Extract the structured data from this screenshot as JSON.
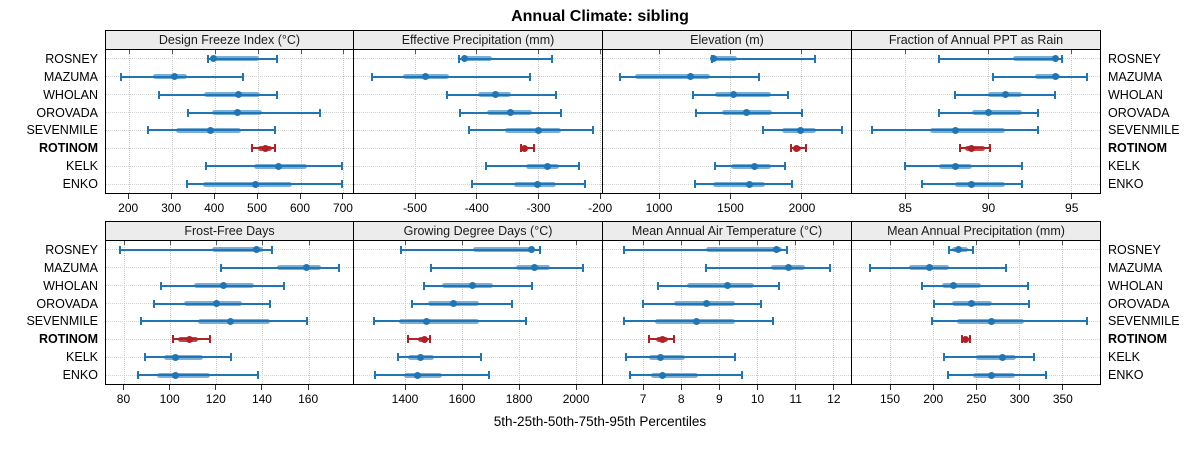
{
  "title": "Annual Climate: sibling",
  "caption": "5th-25th-50th-75th-95th Percentiles",
  "sites": [
    "ROSNEY",
    "MAZUMA",
    "WHOLAN",
    "OROVADA",
    "SEVENMILE",
    "ROTINOM",
    "KELK",
    "ENKO"
  ],
  "highlight_site": "ROTINOM",
  "colors": {
    "series": "#2076B4",
    "series_band": "#79AFD7",
    "highlight": "#B02126",
    "highlight_band": "#C0474E",
    "header_bg": "#ECECEC",
    "panel_border": "#000000",
    "grid": "#C9C9C9"
  },
  "chart_data": [
    {
      "type": "dotplot-percentiles",
      "title": "Design Freeze Index (°C)",
      "xlim": [
        146,
        721
      ],
      "ticks": [
        200,
        300,
        400,
        500,
        600,
        700
      ],
      "percentiles": [
        "5th",
        "25th",
        "50th",
        "75th",
        "95th"
      ],
      "series": [
        {
          "site": "ROSNEY",
          "values": [
            383,
            389,
            397,
            503,
            545
          ]
        },
        {
          "site": "MAZUMA",
          "values": [
            180,
            255,
            305,
            335,
            465
          ]
        },
        {
          "site": "WHOLAN",
          "values": [
            270,
            375,
            455,
            505,
            543
          ]
        },
        {
          "site": "OROVADA",
          "values": [
            337,
            392,
            453,
            510,
            645
          ]
        },
        {
          "site": "SEVENMILE",
          "values": [
            243,
            310,
            390,
            460,
            540
          ]
        },
        {
          "site": "ROTINOM",
          "values": [
            487,
            500,
            518,
            532,
            540
          ]
        },
        {
          "site": "KELK",
          "values": [
            378,
            490,
            548,
            615,
            695
          ]
        },
        {
          "site": "ENKO",
          "values": [
            335,
            372,
            495,
            578,
            695
          ]
        }
      ]
    },
    {
      "type": "dotplot-percentiles",
      "title": "Effective Precipitation (mm)",
      "xlim": [
        -599,
        -197
      ],
      "ticks": [
        -500,
        -400,
        -300,
        -200
      ],
      "percentiles": [
        "5th",
        "25th",
        "50th",
        "75th",
        "95th"
      ],
      "series": [
        {
          "site": "ROSNEY",
          "values": [
            -428,
            -424,
            -420,
            -375,
            -278
          ]
        },
        {
          "site": "MAZUMA",
          "values": [
            -570,
            -520,
            -483,
            -445,
            -313
          ]
        },
        {
          "site": "WHOLAN",
          "values": [
            -448,
            -398,
            -370,
            -345,
            -272
          ]
        },
        {
          "site": "OROVADA",
          "values": [
            -427,
            -383,
            -346,
            -310,
            -264
          ]
        },
        {
          "site": "SEVENMILE",
          "values": [
            -412,
            -355,
            -300,
            -263,
            -212
          ]
        },
        {
          "site": "ROTINOM",
          "values": [
            -328,
            -326,
            -322,
            -317,
            -308
          ]
        },
        {
          "site": "KELK",
          "values": [
            -385,
            -320,
            -285,
            -266,
            -235
          ]
        },
        {
          "site": "ENKO",
          "values": [
            -408,
            -340,
            -302,
            -272,
            -225
          ]
        }
      ]
    },
    {
      "type": "dotplot-percentiles",
      "title": "Elevation (m)",
      "xlim": [
        608,
        2343
      ],
      "ticks": [
        1000,
        1500,
        2000
      ],
      "percentiles": [
        "5th",
        "25th",
        "50th",
        "75th",
        "95th"
      ],
      "series": [
        {
          "site": "ROSNEY",
          "values": [
            1370,
            1376,
            1383,
            1545,
            2090
          ]
        },
        {
          "site": "MAZUMA",
          "values": [
            730,
            830,
            1220,
            1360,
            1700
          ]
        },
        {
          "site": "WHOLAN",
          "values": [
            1240,
            1390,
            1520,
            1780,
            1900
          ]
        },
        {
          "site": "OROVADA",
          "values": [
            1260,
            1440,
            1610,
            1790,
            2000
          ]
        },
        {
          "site": "SEVENMILE",
          "values": [
            1730,
            1860,
            1990,
            2100,
            2280
          ]
        },
        {
          "site": "ROTINOM",
          "values": [
            1920,
            1935,
            1960,
            1990,
            2030
          ]
        },
        {
          "site": "KELK",
          "values": [
            1390,
            1500,
            1670,
            1780,
            1880
          ]
        },
        {
          "site": "ENKO",
          "values": [
            1250,
            1380,
            1630,
            1740,
            1930
          ]
        }
      ]
    },
    {
      "type": "dotplot-percentiles",
      "title": "Fraction of Annual PPT as Rain",
      "xlim": [
        81.8,
        96.7
      ],
      "ticks": [
        85,
        90,
        95
      ],
      "percentiles": [
        "5th",
        "25th",
        "50th",
        "75th",
        "95th"
      ],
      "series": [
        {
          "site": "ROSNEY",
          "values": [
            87,
            91.5,
            94,
            94.2,
            94.4
          ]
        },
        {
          "site": "MAZUMA",
          "values": [
            90.3,
            92.8,
            94,
            94.3,
            95.9
          ]
        },
        {
          "site": "WHOLAN",
          "values": [
            88,
            90,
            91,
            92,
            94
          ]
        },
        {
          "site": "OROVADA",
          "values": [
            87,
            89,
            90,
            92,
            93
          ]
        },
        {
          "site": "SEVENMILE",
          "values": [
            83,
            86.5,
            88,
            91,
            93
          ]
        },
        {
          "site": "ROTINOM",
          "values": [
            88.3,
            88.6,
            89,
            89.8,
            90.1
          ]
        },
        {
          "site": "KELK",
          "values": [
            85,
            87,
            88,
            89,
            92
          ]
        },
        {
          "site": "ENKO",
          "values": [
            86,
            88,
            89,
            91,
            92
          ]
        }
      ]
    },
    {
      "type": "dotplot-percentiles",
      "title": "Frost-Free Days",
      "xlim": [
        72,
        179
      ],
      "ticks": [
        80,
        100,
        120,
        140,
        160
      ],
      "percentiles": [
        "5th",
        "25th",
        "50th",
        "75th",
        "95th"
      ],
      "series": [
        {
          "site": "ROSNEY",
          "values": [
            78,
            118,
            137,
            140,
            144
          ]
        },
        {
          "site": "MAZUMA",
          "values": [
            122,
            146,
            159,
            165,
            173
          ]
        },
        {
          "site": "WHOLAN",
          "values": [
            96,
            110,
            123,
            136,
            149
          ]
        },
        {
          "site": "OROVADA",
          "values": [
            93,
            106,
            120,
            131,
            143
          ]
        },
        {
          "site": "SEVENMILE",
          "values": [
            87,
            112,
            126,
            143,
            159
          ]
        },
        {
          "site": "ROTINOM",
          "values": [
            101,
            103,
            108,
            112,
            117
          ]
        },
        {
          "site": "KELK",
          "values": [
            89,
            97,
            102,
            114,
            126
          ]
        },
        {
          "site": "ENKO",
          "values": [
            86,
            94,
            102,
            117,
            138
          ]
        }
      ]
    },
    {
      "type": "dotplot-percentiles",
      "title": "Growing Degree Days (°C)",
      "xlim": [
        1221,
        2091
      ],
      "ticks": [
        1400,
        1600,
        1800,
        2000
      ],
      "percentiles": [
        "5th",
        "25th",
        "50th",
        "75th",
        "95th"
      ],
      "series": [
        {
          "site": "ROSNEY",
          "values": [
            1385,
            1640,
            1845,
            1857,
            1872
          ]
        },
        {
          "site": "MAZUMA",
          "values": [
            1490,
            1790,
            1855,
            1910,
            2025
          ]
        },
        {
          "site": "WHOLAN",
          "values": [
            1465,
            1530,
            1635,
            1710,
            1845
          ]
        },
        {
          "site": "OROVADA",
          "values": [
            1425,
            1480,
            1570,
            1660,
            1775
          ]
        },
        {
          "site": "SEVENMILE",
          "values": [
            1290,
            1380,
            1475,
            1660,
            1825
          ]
        },
        {
          "site": "ROTINOM",
          "values": [
            1410,
            1445,
            1470,
            1478,
            1486
          ]
        },
        {
          "site": "KELK",
          "values": [
            1375,
            1410,
            1455,
            1500,
            1665
          ]
        },
        {
          "site": "ENKO",
          "values": [
            1295,
            1395,
            1445,
            1530,
            1695
          ]
        }
      ]
    },
    {
      "type": "dotplot-percentiles",
      "title": "Mean Annual Air Temperature (°C)",
      "xlim": [
        5.95,
        12.45
      ],
      "ticks": [
        7,
        8,
        9,
        10,
        11,
        12
      ],
      "percentiles": [
        "5th",
        "25th",
        "50th",
        "75th",
        "95th"
      ],
      "series": [
        {
          "site": "ROSNEY",
          "values": [
            6.5,
            8.65,
            10.5,
            10.65,
            10.78
          ]
        },
        {
          "site": "MAZUMA",
          "values": [
            8.65,
            10.35,
            10.8,
            11.25,
            11.9
          ]
        },
        {
          "site": "WHOLAN",
          "values": [
            7.4,
            8.15,
            9.2,
            9.9,
            10.55
          ]
        },
        {
          "site": "OROVADA",
          "values": [
            7.0,
            7.8,
            8.65,
            9.4,
            10.1
          ]
        },
        {
          "site": "SEVENMILE",
          "values": [
            6.5,
            7.3,
            8.4,
            9.4,
            10.4
          ]
        },
        {
          "site": "ROTINOM",
          "values": [
            7.15,
            7.35,
            7.5,
            7.65,
            7.82
          ]
        },
        {
          "site": "KELK",
          "values": [
            6.55,
            7.15,
            7.45,
            8.1,
            9.4
          ]
        },
        {
          "site": "ENKO",
          "values": [
            6.65,
            7.2,
            7.5,
            8.45,
            9.6
          ]
        }
      ]
    },
    {
      "type": "dotplot-percentiles",
      "title": "Mean Annual Precipitation (mm)",
      "xlim": [
        106,
        393
      ],
      "ticks": [
        150,
        200,
        250,
        300,
        350
      ],
      "percentiles": [
        "5th",
        "25th",
        "50th",
        "75th",
        "95th"
      ],
      "series": [
        {
          "site": "ROSNEY",
          "values": [
            218,
            222,
            229,
            240,
            246
          ]
        },
        {
          "site": "MAZUMA",
          "values": [
            127,
            172,
            196,
            218,
            284
          ]
        },
        {
          "site": "WHOLAN",
          "values": [
            187,
            210,
            224,
            255,
            310
          ]
        },
        {
          "site": "OROVADA",
          "values": [
            201,
            222,
            244,
            268,
            311
          ]
        },
        {
          "site": "SEVENMILE",
          "values": [
            199,
            228,
            268,
            305,
            378
          ]
        },
        {
          "site": "ROTINOM",
          "values": [
            233,
            235,
            237,
            239,
            242
          ]
        },
        {
          "site": "KELK",
          "values": [
            212,
            250,
            280,
            296,
            317
          ]
        },
        {
          "site": "ENKO",
          "values": [
            217,
            246,
            268,
            295,
            331
          ]
        }
      ]
    }
  ]
}
